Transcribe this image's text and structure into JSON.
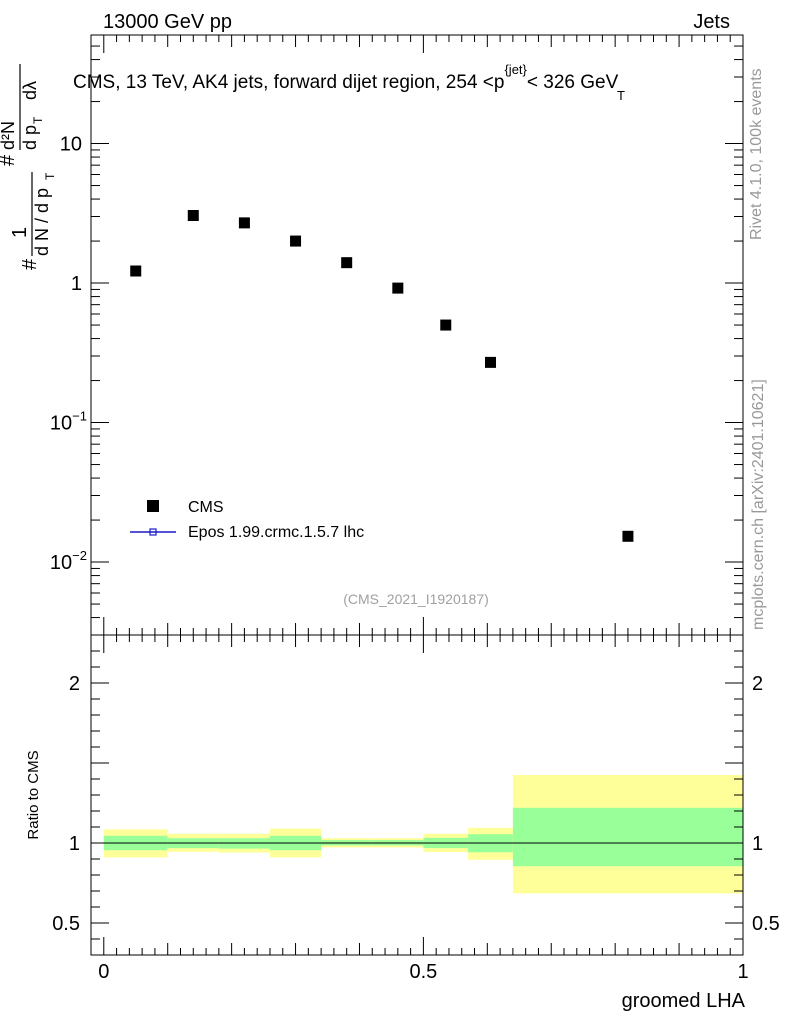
{
  "header": {
    "beam": "13000 GeV pp",
    "category": "Jets"
  },
  "side_labels": {
    "rivet": "Rivet 4.1.0,  100k events",
    "site": "mcplots.cern.ch [arXiv:2401.10621]"
  },
  "colors": {
    "data_marker": "#000000",
    "mc_line": "#1a1acc",
    "band_inner": "#99ff99",
    "band_outer": "#ffff99"
  },
  "chart_data": [
    {
      "type": "scatter",
      "title_parts": {
        "prefix": "CMS, 13 TeV, AK4 jets, forward dijet region, 254 <",
        "p": "p",
        "sub": "T",
        "sup": "{jet}",
        "suffix": "< 326 GeV"
      },
      "ylabel_parts": {
        "hash": "#",
        "one": "1",
        "den_left": "d N / d p",
        "den_sub": "T",
        "hash2": "#",
        "num_d2N": "d²N",
        "den_right": "d p",
        "den_right_sub": "T",
        "dlambda": "dλ"
      },
      "yscale": "log",
      "ylim": [
        0.003,
        60
      ],
      "xlim": [
        -0.02,
        1.0
      ],
      "yticks": [
        {
          "value": 10,
          "label": "10"
        },
        {
          "value": 1,
          "label": "1"
        },
        {
          "value": 0.1,
          "label": "10",
          "exp": "−1"
        },
        {
          "value": 0.01,
          "label": "10",
          "exp": "−2"
        }
      ],
      "series": [
        {
          "name": "CMS",
          "marker": "square",
          "x": [
            0.05,
            0.14,
            0.22,
            0.3,
            0.38,
            0.46,
            0.535,
            0.605,
            0.82
          ],
          "y": [
            1.22,
            3.05,
            2.7,
            2.0,
            1.4,
            0.92,
            0.5,
            0.27,
            0.0153
          ]
        }
      ],
      "legend": [
        {
          "label": "CMS",
          "style": "square"
        },
        {
          "label": "Epos 1.99.crmc.1.5.7 lhc",
          "style": "line"
        }
      ],
      "watermark": "(CMS_2021_I1920187)"
    },
    {
      "type": "area",
      "ylabel": "Ratio to CMS",
      "xlabel": "groomed LHA",
      "ylim": [
        0.3,
        2.3
      ],
      "xlim": [
        -0.02,
        1.0
      ],
      "yticks": [
        {
          "value": 2,
          "label": "2"
        },
        {
          "value": 1,
          "label": "1"
        },
        {
          "value": 0.5,
          "label": "0.5"
        }
      ],
      "xticks": [
        {
          "value": 0,
          "label": "0"
        },
        {
          "value": 0.5,
          "label": "0.5"
        },
        {
          "value": 1,
          "label": "1"
        }
      ],
      "reference_line": 1,
      "bands": [
        {
          "x0": 0.0,
          "x1": 0.1,
          "inner": [
            0.955,
            1.045
          ],
          "outer": [
            0.91,
            1.085
          ]
        },
        {
          "x0": 0.1,
          "x1": 0.18,
          "inner": [
            0.968,
            1.03
          ],
          "outer": [
            0.945,
            1.058
          ]
        },
        {
          "x0": 0.18,
          "x1": 0.26,
          "inner": [
            0.965,
            1.03
          ],
          "outer": [
            0.94,
            1.058
          ]
        },
        {
          "x0": 0.26,
          "x1": 0.34,
          "inner": [
            0.955,
            1.045
          ],
          "outer": [
            0.91,
            1.09
          ]
        },
        {
          "x0": 0.34,
          "x1": 0.42,
          "inner": [
            0.985,
            1.018
          ],
          "outer": [
            0.972,
            1.03
          ]
        },
        {
          "x0": 0.42,
          "x1": 0.5,
          "inner": [
            0.985,
            1.018
          ],
          "outer": [
            0.972,
            1.03
          ]
        },
        {
          "x0": 0.5,
          "x1": 0.57,
          "inner": [
            0.968,
            1.032
          ],
          "outer": [
            0.943,
            1.058
          ]
        },
        {
          "x0": 0.57,
          "x1": 0.64,
          "inner": [
            0.942,
            1.055
          ],
          "outer": [
            0.895,
            1.095
          ]
        },
        {
          "x0": 0.64,
          "x1": 1.0,
          "inner": [
            0.855,
            1.22
          ],
          "outer": [
            0.685,
            1.425
          ]
        }
      ]
    }
  ]
}
